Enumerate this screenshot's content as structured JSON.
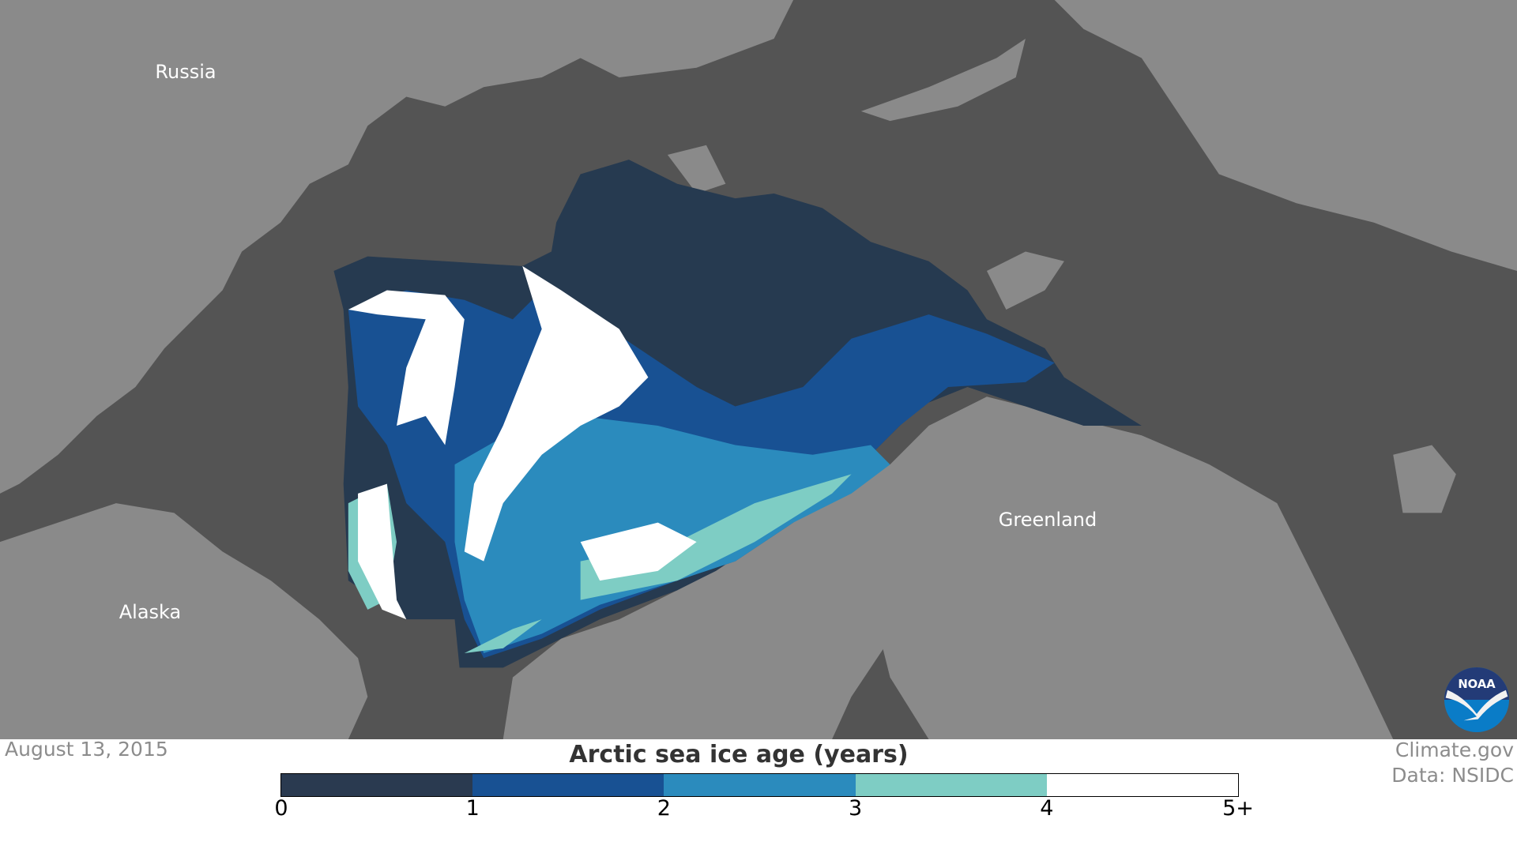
{
  "map": {
    "labels": {
      "russia": "Russia",
      "alaska": "Alaska",
      "greenland": "Greenland"
    },
    "colors": {
      "water": "#545454",
      "land": "#8a8a8a"
    }
  },
  "date": "August 13, 2015",
  "credit": {
    "line1": "Climate.gov",
    "line2": "Data: NSIDC"
  },
  "logo": {
    "text": "NOAA"
  },
  "legend": {
    "title": "Arctic sea ice age (years)",
    "bins": [
      {
        "range": "0-1",
        "color": "#2a3a50"
      },
      {
        "range": "1-2",
        "color": "#185193"
      },
      {
        "range": "2-3",
        "color": "#2b8bbd"
      },
      {
        "range": "3-4",
        "color": "#7ecdc4"
      },
      {
        "range": "4-5+",
        "color": "#ffffff"
      }
    ],
    "ticks": [
      "0",
      "1",
      "2",
      "3",
      "4",
      "5+"
    ]
  }
}
